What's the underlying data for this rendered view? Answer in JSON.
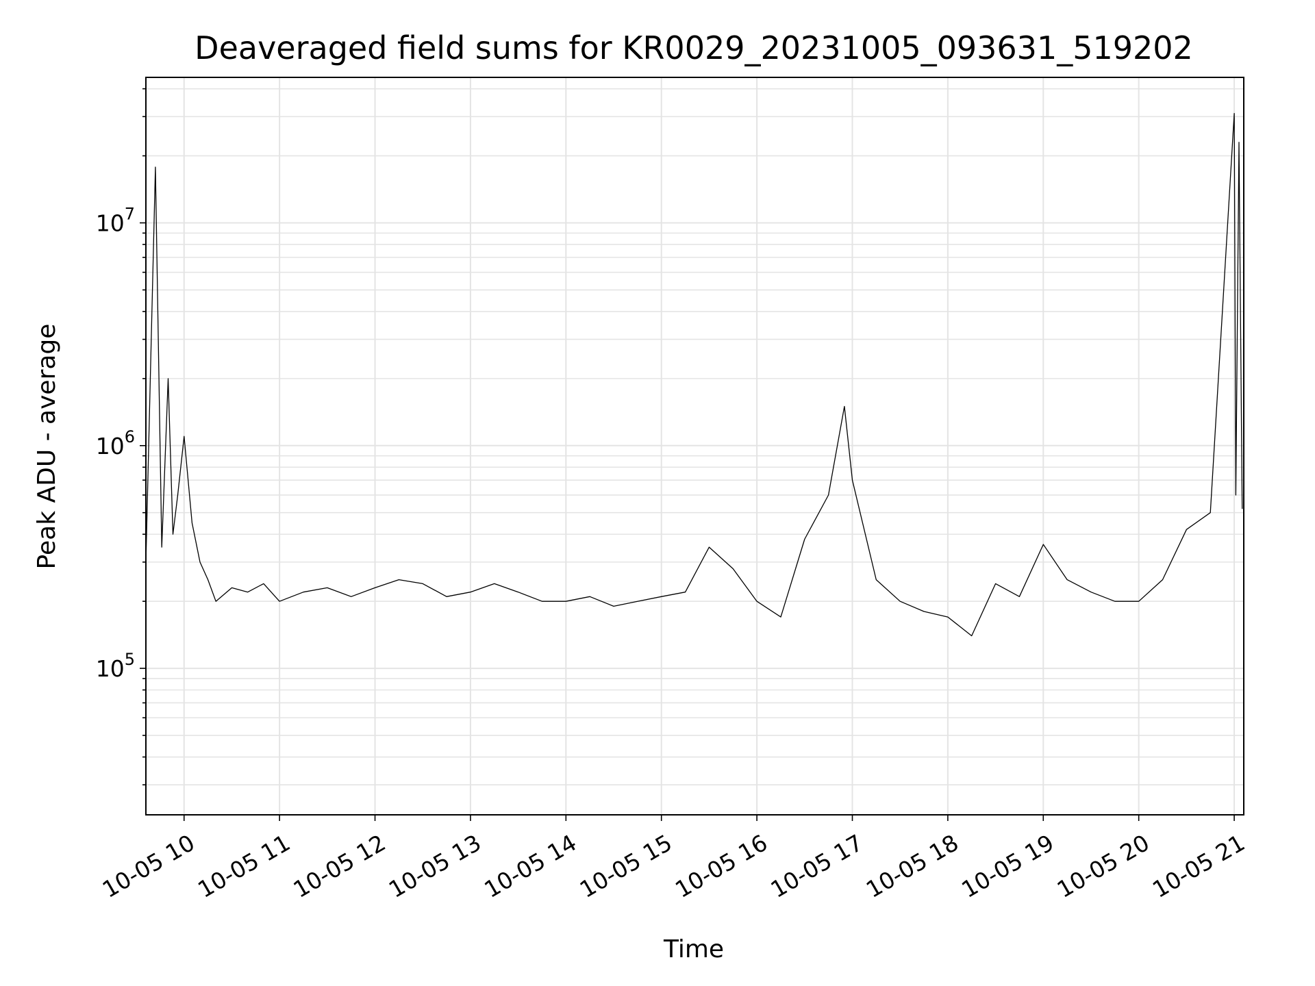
{
  "chart_data": {
    "type": "line",
    "title": "Deaveraged field sums for KR0029_20231005_093631_519202",
    "xlabel": "Time",
    "ylabel": "Peak ADU - average",
    "y_scale": "log",
    "ylim": [
      22000,
      45000000
    ],
    "xlim": [
      "10-05 09:36",
      "10-05 21:06"
    ],
    "x_ticks": [
      "10-05 10",
      "10-05 11",
      "10-05 12",
      "10-05 13",
      "10-05 14",
      "10-05 15",
      "10-05 16",
      "10-05 17",
      "10-05 18",
      "10-05 19",
      "10-05 20",
      "10-05 21"
    ],
    "y_ticks": [
      100000,
      1000000,
      10000000
    ],
    "grid": true,
    "line_color": "#000000",
    "series": [
      {
        "x": [
          "10-05 09:36",
          "10-05 09:42",
          "10-05 09:46",
          "10-05 09:50",
          "10-05 09:53",
          "10-05 09:56",
          "10-05 10:00",
          "10-05 10:05",
          "10-05 10:10",
          "10-05 10:15",
          "10-05 10:20",
          "10-05 10:30",
          "10-05 10:40",
          "10-05 10:50",
          "10-05 11:00",
          "10-05 11:15",
          "10-05 11:30",
          "10-05 11:45",
          "10-05 12:00",
          "10-05 12:15",
          "10-05 12:30",
          "10-05 12:45",
          "10-05 13:00",
          "10-05 13:15",
          "10-05 13:30",
          "10-05 13:45",
          "10-05 14:00",
          "10-05 14:15",
          "10-05 14:30",
          "10-05 14:45",
          "10-05 15:00",
          "10-05 15:15",
          "10-05 15:30",
          "10-05 15:45",
          "10-05 16:00",
          "10-05 16:15",
          "10-05 16:30",
          "10-05 16:45",
          "10-05 16:55",
          "10-05 17:00",
          "10-05 17:15",
          "10-05 17:30",
          "10-05 17:45",
          "10-05 18:00",
          "10-05 18:15",
          "10-05 18:30",
          "10-05 18:45",
          "10-05 19:00",
          "10-05 19:15",
          "10-05 19:30",
          "10-05 19:45",
          "10-05 20:00",
          "10-05 20:15",
          "10-05 20:30",
          "10-05 20:45",
          "10-05 21:00",
          "10-05 21:01",
          "10-05 21:03",
          "10-05 21:05"
        ],
        "values": [
          300000,
          17800000,
          350000,
          2000000,
          400000,
          600000,
          1100000,
          450000,
          300000,
          250000,
          200000,
          230000,
          220000,
          240000,
          200000,
          220000,
          230000,
          210000,
          230000,
          250000,
          240000,
          210000,
          220000,
          240000,
          220000,
          200000,
          200000,
          210000,
          190000,
          200000,
          210000,
          220000,
          350000,
          280000,
          200000,
          170000,
          380000,
          600000,
          1500000,
          700000,
          250000,
          200000,
          180000,
          170000,
          140000,
          240000,
          210000,
          360000,
          250000,
          220000,
          200000,
          200000,
          250000,
          420000,
          500000,
          31000000,
          600000,
          23000000,
          520000
        ]
      }
    ]
  }
}
